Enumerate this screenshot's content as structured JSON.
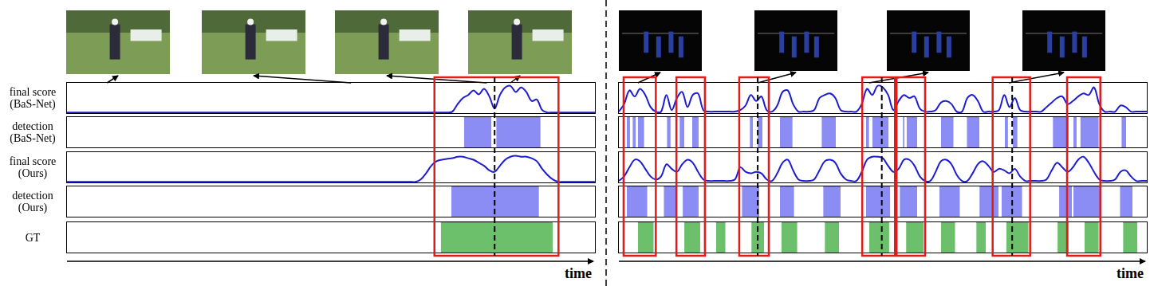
{
  "row_labels": [
    "final score (BaS-Net)",
    "detection (BaS-Net)",
    "final score (Ours)",
    "detection (Ours)",
    "GT"
  ],
  "chart_data": [
    {
      "type": "line",
      "xlabel": "time",
      "xlim": [
        0,
        100
      ],
      "ylim": [
        0,
        1
      ],
      "tick_labels": false,
      "grid": false,
      "x": [
        0,
        1,
        2,
        3,
        4,
        5,
        6,
        7,
        8,
        9,
        10,
        11,
        12,
        13,
        14,
        15,
        16,
        17,
        18,
        19,
        20,
        21,
        22,
        23,
        24,
        25,
        26,
        27,
        28,
        29,
        30,
        31,
        32,
        33,
        34,
        35,
        36,
        37,
        38,
        39,
        40,
        41,
        42,
        43,
        44,
        45,
        46,
        47,
        48,
        49,
        50,
        51,
        52,
        53,
        54,
        55,
        56,
        57,
        58,
        59,
        60,
        61,
        62,
        63,
        64,
        65,
        66,
        67,
        68,
        69,
        70,
        71,
        72,
        73,
        74,
        75,
        76,
        77,
        78,
        79,
        80,
        81,
        82,
        83,
        84,
        85,
        86,
        87,
        88,
        89,
        90,
        91,
        92,
        93,
        94,
        95,
        96,
        97,
        98,
        99,
        100
      ],
      "series": [
        {
          "type": "line",
          "color": "#1c1cd0",
          "values": [
            0.02,
            0.02,
            0.02,
            0.02,
            0.02,
            0.02,
            0.02,
            0.02,
            0.02,
            0.02,
            0.02,
            0.02,
            0.02,
            0.02,
            0.02,
            0.02,
            0.02,
            0.02,
            0.02,
            0.02,
            0.02,
            0.02,
            0.02,
            0.02,
            0.02,
            0.02,
            0.02,
            0.02,
            0.02,
            0.02,
            0.02,
            0.02,
            0.02,
            0.02,
            0.02,
            0.02,
            0.02,
            0.02,
            0.02,
            0.02,
            0.02,
            0.02,
            0.02,
            0.02,
            0.02,
            0.02,
            0.02,
            0.02,
            0.02,
            0.02,
            0.02,
            0.02,
            0.02,
            0.02,
            0.02,
            0.02,
            0.02,
            0.02,
            0.02,
            0.02,
            0.02,
            0.02,
            0.02,
            0.02,
            0.02,
            0.02,
            0.02,
            0.02,
            0.02,
            0.02,
            0.02,
            0.02,
            0.02,
            0.05,
            0.3,
            0.5,
            0.6,
            0.75,
            0.62,
            0.8,
            0.55,
            0.15,
            0.6,
            0.85,
            0.9,
            0.7,
            0.85,
            0.7,
            0.4,
            0.45,
            0.1,
            0.02,
            0.02,
            0.02,
            0.02,
            0.02,
            0.02,
            0.02,
            0.02,
            0.02,
            0.02
          ]
        },
        {
          "type": "interval",
          "color": "#8c8cf5",
          "intervals": [
            [
              75.2,
              80.4
            ],
            [
              81.3,
              89.7
            ]
          ]
        },
        {
          "type": "line",
          "color": "#1c1cd0",
          "values": [
            0.02,
            0.02,
            0.02,
            0.02,
            0.02,
            0.02,
            0.02,
            0.02,
            0.02,
            0.02,
            0.02,
            0.02,
            0.02,
            0.02,
            0.02,
            0.02,
            0.02,
            0.02,
            0.02,
            0.02,
            0.02,
            0.02,
            0.02,
            0.02,
            0.02,
            0.02,
            0.02,
            0.02,
            0.02,
            0.02,
            0.02,
            0.02,
            0.02,
            0.02,
            0.02,
            0.02,
            0.02,
            0.02,
            0.02,
            0.02,
            0.02,
            0.02,
            0.02,
            0.02,
            0.02,
            0.02,
            0.02,
            0.02,
            0.02,
            0.02,
            0.02,
            0.02,
            0.02,
            0.02,
            0.02,
            0.02,
            0.02,
            0.02,
            0.02,
            0.02,
            0.02,
            0.02,
            0.02,
            0.02,
            0.02,
            0.02,
            0.02,
            0.1,
            0.3,
            0.55,
            0.7,
            0.75,
            0.78,
            0.8,
            0.85,
            0.85,
            0.8,
            0.75,
            0.65,
            0.55,
            0.4,
            0.35,
            0.55,
            0.75,
            0.85,
            0.88,
            0.85,
            0.85,
            0.8,
            0.7,
            0.45,
            0.25,
            0.1,
            0.02,
            0.02,
            0.02,
            0.02,
            0.02,
            0.02,
            0.02,
            0.02
          ]
        },
        {
          "type": "interval",
          "color": "#8c8cf5",
          "intervals": [
            [
              72.8,
              89.4
            ]
          ]
        },
        {
          "type": "interval",
          "color": "#6cc06c",
          "intervals": [
            [
              70.8,
              92.0
            ]
          ]
        }
      ],
      "highlights": [
        [
          69.6,
          93.1
        ]
      ],
      "dashed_lines": [
        81.0
      ],
      "frame_times": [
        7.6,
        53.8,
        79.5,
        84.0
      ]
    },
    {
      "type": "line",
      "xlabel": "time",
      "xlim": [
        0,
        100
      ],
      "ylim": [
        0,
        1
      ],
      "tick_labels": false,
      "grid": false,
      "x": [
        0,
        1,
        2,
        3,
        4,
        5,
        6,
        7,
        8,
        9,
        10,
        11,
        12,
        13,
        14,
        15,
        16,
        17,
        18,
        19,
        20,
        21,
        22,
        23,
        24,
        25,
        26,
        27,
        28,
        29,
        30,
        31,
        32,
        33,
        34,
        35,
        36,
        37,
        38,
        39,
        40,
        41,
        42,
        43,
        44,
        45,
        46,
        47,
        48,
        49,
        50,
        51,
        52,
        53,
        54,
        55,
        56,
        57,
        58,
        59,
        60,
        61,
        62,
        63,
        64,
        65,
        66,
        67,
        68,
        69,
        70,
        71,
        72,
        73,
        74,
        75,
        76,
        77,
        78,
        79,
        80,
        81,
        82,
        83,
        84,
        85,
        86,
        87,
        88,
        89,
        90,
        91,
        92,
        93,
        94,
        95,
        96,
        97,
        98,
        99,
        100
      ],
      "series": [
        {
          "type": "line",
          "color": "#1c1cd0",
          "values": [
            0.05,
            0.3,
            0.75,
            0.55,
            0.8,
            0.6,
            0.2,
            0.05,
            0.05,
            0.6,
            0.1,
            0.5,
            0.7,
            0.2,
            0.6,
            0.65,
            0.1,
            0.05,
            0.05,
            0.05,
            0.05,
            0.05,
            0.05,
            0.1,
            0.25,
            0.6,
            0.4,
            0.55,
            0.1,
            0.05,
            0.25,
            0.7,
            0.75,
            0.3,
            0.05,
            0.05,
            0.05,
            0.1,
            0.5,
            0.6,
            0.65,
            0.5,
            0.1,
            0.05,
            0.05,
            0.05,
            0.3,
            0.8,
            0.6,
            0.9,
            0.85,
            0.6,
            0.1,
            0.4,
            0.6,
            0.5,
            0.55,
            0.15,
            0.05,
            0.05,
            0.1,
            0.35,
            0.4,
            0.3,
            0.05,
            0.05,
            0.5,
            0.6,
            0.4,
            0.05,
            0.05,
            0.05,
            0.1,
            0.6,
            0.2,
            0.5,
            0.1,
            0.05,
            0.05,
            0.05,
            0.05,
            0.2,
            0.35,
            0.5,
            0.55,
            0.3,
            0.4,
            0.55,
            0.65,
            0.6,
            0.85,
            0.3,
            0.05,
            0.05,
            0.05,
            0.25,
            0.2,
            0.05,
            0.05,
            0.05,
            0.05
          ]
        },
        {
          "type": "interval",
          "color": "#8c8cf5",
          "intervals": [
            [
              1.5,
              2.1
            ],
            [
              2.6,
              3.2
            ],
            [
              3.6,
              4.8
            ],
            [
              9.1,
              9.8
            ],
            [
              11.5,
              12.4
            ],
            [
              13.9,
              15.1
            ],
            [
              24.8,
              25.4
            ],
            [
              26.3,
              27.2
            ],
            [
              30.5,
              32.9
            ],
            [
              38.4,
              41.1
            ],
            [
              46.8,
              47.4
            ],
            [
              48.0,
              51.1
            ],
            [
              53.8,
              54.1
            ],
            [
              54.5,
              56.5
            ],
            [
              61.0,
              63.4
            ],
            [
              65.9,
              68.3
            ],
            [
              73.1,
              73.7
            ],
            [
              74.6,
              75.5
            ],
            [
              82.2,
              85.2
            ],
            [
              86.1,
              86.7
            ],
            [
              87.4,
              90.9
            ],
            [
              95.2,
              96.1
            ]
          ]
        },
        {
          "type": "line",
          "color": "#1c1cd0",
          "values": [
            0.05,
            0.2,
            0.5,
            0.75,
            0.7,
            0.45,
            0.2,
            0.1,
            0.2,
            0.6,
            0.45,
            0.35,
            0.6,
            0.75,
            0.65,
            0.35,
            0.1,
            0.05,
            0.05,
            0.05,
            0.05,
            0.05,
            0.1,
            0.5,
            0.35,
            0.3,
            0.35,
            0.3,
            0.1,
            0.05,
            0.3,
            0.65,
            0.75,
            0.4,
            0.1,
            0.05,
            0.05,
            0.1,
            0.4,
            0.7,
            0.75,
            0.65,
            0.3,
            0.1,
            0.05,
            0.05,
            0.35,
            0.75,
            0.85,
            0.85,
            0.8,
            0.55,
            0.35,
            0.45,
            0.75,
            0.75,
            0.55,
            0.2,
            0.05,
            0.05,
            0.35,
            0.7,
            0.75,
            0.6,
            0.25,
            0.05,
            0.05,
            0.3,
            0.6,
            0.7,
            0.55,
            0.35,
            0.45,
            0.4,
            0.3,
            0.45,
            0.2,
            0.05,
            0.05,
            0.05,
            0.05,
            0.1,
            0.4,
            0.65,
            0.5,
            0.35,
            0.5,
            0.75,
            0.85,
            0.65,
            0.35,
            0.1,
            0.05,
            0.05,
            0.1,
            0.35,
            0.4,
            0.2,
            0.05,
            0.05,
            0.05
          ]
        },
        {
          "type": "interval",
          "color": "#8c8cf5",
          "intervals": [
            [
              1.5,
              5.4
            ],
            [
              8.5,
              10.9
            ],
            [
              12.1,
              15.1
            ],
            [
              23.3,
              26.6
            ],
            [
              30.5,
              33.2
            ],
            [
              38.7,
              42.0
            ],
            [
              46.8,
              51.4
            ],
            [
              53.2,
              56.5
            ],
            [
              60.7,
              64.6
            ],
            [
              68.3,
              71.9
            ],
            [
              72.5,
              76.4
            ],
            [
              83.4,
              85.8
            ],
            [
              86.1,
              91.2
            ],
            [
              94.9,
              97.3
            ]
          ]
        },
        {
          "type": "interval",
          "color": "#6cc06c",
          "intervals": [
            [
              3.6,
              6.6
            ],
            [
              12.4,
              15.4
            ],
            [
              18.4,
              20.2
            ],
            [
              25.1,
              27.5
            ],
            [
              30.8,
              33.8
            ],
            [
              39.0,
              41.7
            ],
            [
              47.4,
              51.2
            ],
            [
              54.4,
              57.7
            ],
            [
              61.0,
              63.7
            ],
            [
              67.7,
              69.5
            ],
            [
              73.4,
              77.6
            ],
            [
              83.1,
              85.2
            ],
            [
              88.2,
              90.9
            ],
            [
              95.5,
              98.2
            ]
          ]
        }
      ],
      "highlights": [
        [
          0.9,
          7.0
        ],
        [
          10.9,
          16.3
        ],
        [
          22.8,
          28.4
        ],
        [
          46.1,
          52.3
        ],
        [
          52.6,
          58.0
        ],
        [
          70.8,
          77.9
        ],
        [
          84.9,
          91.2
        ]
      ],
      "dashed_lines": [
        26.3,
        49.8,
        74.5
      ],
      "frame_times": [
        3.6,
        26.3,
        47.4,
        73.9
      ]
    }
  ]
}
